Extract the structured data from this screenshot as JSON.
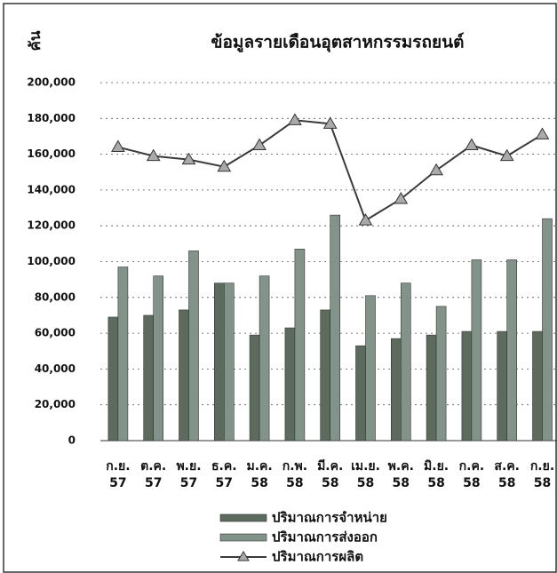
{
  "chart_data": {
    "type": "bar_line",
    "title": "ข้อมูลรายเดือนอุตสาหกรรมรถยนต์",
    "y_label": "คัน",
    "categories": [
      "ก.ย. 57",
      "ต.ค. 57",
      "พ.ย. 57",
      "ธ.ค. 57",
      "ม.ค. 58",
      "ก.พ. 58",
      "มี.ค. 58",
      "เม.ย. 58",
      "พ.ค. 58",
      "มิ.ย. 58",
      "ก.ค. 58",
      "ส.ค. 58",
      "ก.ย. 58"
    ],
    "series": [
      {
        "name": "ปริมาณการจำหน่าย",
        "kind": "bar",
        "color": "#5d6b5f",
        "values": [
          69000,
          70000,
          73000,
          88000,
          59000,
          63000,
          73000,
          53000,
          57000,
          59000,
          61000,
          61000,
          61000
        ]
      },
      {
        "name": "ปริมาณการส่งออก",
        "kind": "bar",
        "color": "#82948a",
        "values": [
          97000,
          92000,
          106000,
          88000,
          92000,
          107000,
          126000,
          81000,
          88000,
          75000,
          101000,
          101000,
          124000
        ]
      },
      {
        "name": "ปริมาณการผลิต",
        "kind": "line",
        "color": "#3a3a3a",
        "values": [
          164000,
          159000,
          157000,
          153000,
          165000,
          179000,
          177000,
          123000,
          135000,
          151000,
          165000,
          159000,
          171000
        ]
      }
    ],
    "ylim": [
      0,
      200000
    ],
    "yticks": [
      0,
      {
        "value": 20000,
        "label": "20,000"
      },
      {
        "value": 40000,
        "label": "40,000"
      },
      {
        "value": 60000,
        "label": "60,000"
      },
      {
        "value": 80000,
        "label": "80,000"
      },
      {
        "value": 100000,
        "label": "100,000"
      },
      {
        "value": 120000,
        "label": "120,000"
      },
      {
        "value": 140000,
        "label": "140,000"
      },
      {
        "value": 160000,
        "label": "160,000"
      },
      {
        "value": 180000,
        "label": "180,000"
      },
      {
        "value": 200000,
        "label": "200,000"
      }
    ],
    "grid": true
  }
}
